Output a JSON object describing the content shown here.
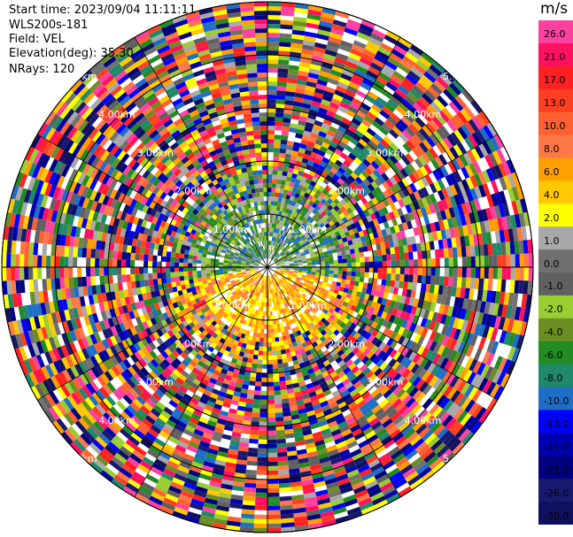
{
  "header": {
    "start_time": "Start time: 2023/09/04 11:11:11",
    "instrument": "WLS200s-181",
    "field": "Field: VEL",
    "elevation": "Elevation(deg): 35.30",
    "nrays": "NRays: 120"
  },
  "colorbar": {
    "unit": "m/s",
    "labels": [
      "26.0",
      "21.0",
      "17.0",
      "13.0",
      "10.0",
      "8.0",
      "6.0",
      "4.0",
      "2.0",
      "1.0",
      "0.0",
      "-1.0",
      "-2.0",
      "-4.0",
      "-6.0",
      "-8.0",
      "-10.0",
      "-13.0",
      "-17.0",
      "-21.0",
      "-26.0",
      "-30.0"
    ],
    "colors": [
      "#ff40a0",
      "#ff1060",
      "#ff2020",
      "#ff4020",
      "#ff6030",
      "#ff7848",
      "#ff9f00",
      "#ffc800",
      "#ffff00",
      "#a8a8a8",
      "#707070",
      "#606060",
      "#9acd32",
      "#6b8e23",
      "#228b22",
      "#1e8a6a",
      "#1e6ec8",
      "#0000ff",
      "#0000b0",
      "#000080",
      "#191970",
      "#101060"
    ]
  },
  "chart_data": {
    "type": "heatmap",
    "subtype": "polar PPI scan",
    "field": "VEL",
    "units": "m/s",
    "nrays": 120,
    "range_rings_km": [
      "1.00km",
      "2.00km",
      "3.00km",
      "4.00km",
      "5.00km"
    ],
    "color_range": [
      -30.0,
      26.0
    ]
  }
}
